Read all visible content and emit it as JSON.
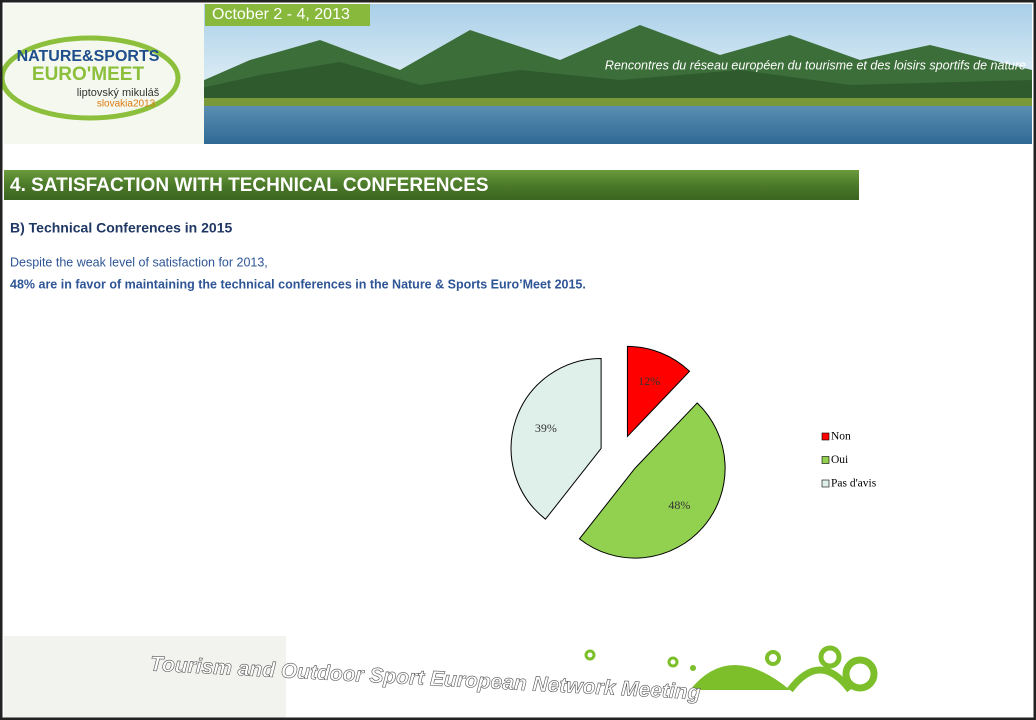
{
  "header": {
    "date": "October 2 - 4, 2013",
    "logo_line1": "NATURE&SPORTS",
    "logo_line2": "EURO'MEET",
    "logo_line3": "liptovský mikuláš",
    "logo_line4": "slovakia2013",
    "tagline": "Rencontres du réseau européen du tourisme et des loisirs sportifs de nature"
  },
  "section_title": "4.   SATISFACTION WITH TECHNICAL CONFERENCES",
  "subtitle": "B) Technical Conferences in 2015",
  "text": [
    "Despite the weak level of satisfaction for 2013,",
    "48% are in favor of maintaining the technical conferences  in the Nature & Sports Euro’Meet 2015."
  ],
  "chart_data": {
    "type": "pie",
    "categories": [
      "Non",
      "Oui",
      "Pas d'avis"
    ],
    "values": [
      12,
      48,
      39
    ],
    "value_labels": [
      "12%",
      "48%",
      "39%"
    ],
    "colors": [
      "#ff0000",
      "#92d050",
      "#dff0ea"
    ],
    "exploded": true,
    "legend": "right"
  },
  "footer": "Tourism and Outdoor Sport European Network Meeting"
}
